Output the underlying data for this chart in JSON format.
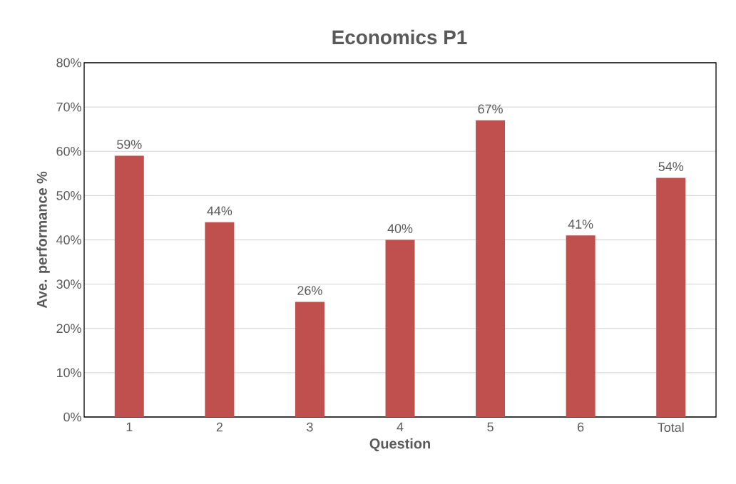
{
  "chart_data": {
    "type": "bar",
    "title": "Economics P1",
    "xlabel": "Question",
    "ylabel": "Ave. performance %",
    "categories": [
      "1",
      "2",
      "3",
      "4",
      "5",
      "6",
      "Total"
    ],
    "values": [
      59,
      44,
      26,
      40,
      67,
      41,
      54
    ],
    "color": "#c0504d",
    "value_labels": [
      "59%",
      "44%",
      "26%",
      "40%",
      "67%",
      "41%",
      "54%"
    ],
    "ylim": [
      0,
      80
    ],
    "yticks": [
      {
        "value": 0,
        "label": "0%"
      },
      {
        "value": 10,
        "label": "10%"
      },
      {
        "value": 20,
        "label": "20%"
      },
      {
        "value": 30,
        "label": "30%"
      },
      {
        "value": 40,
        "label": "40%"
      },
      {
        "value": 50,
        "label": "50%"
      },
      {
        "value": 60,
        "label": "60%"
      },
      {
        "value": 70,
        "label": "70%"
      },
      {
        "value": 80,
        "label": "80%"
      }
    ],
    "grid": "y"
  }
}
